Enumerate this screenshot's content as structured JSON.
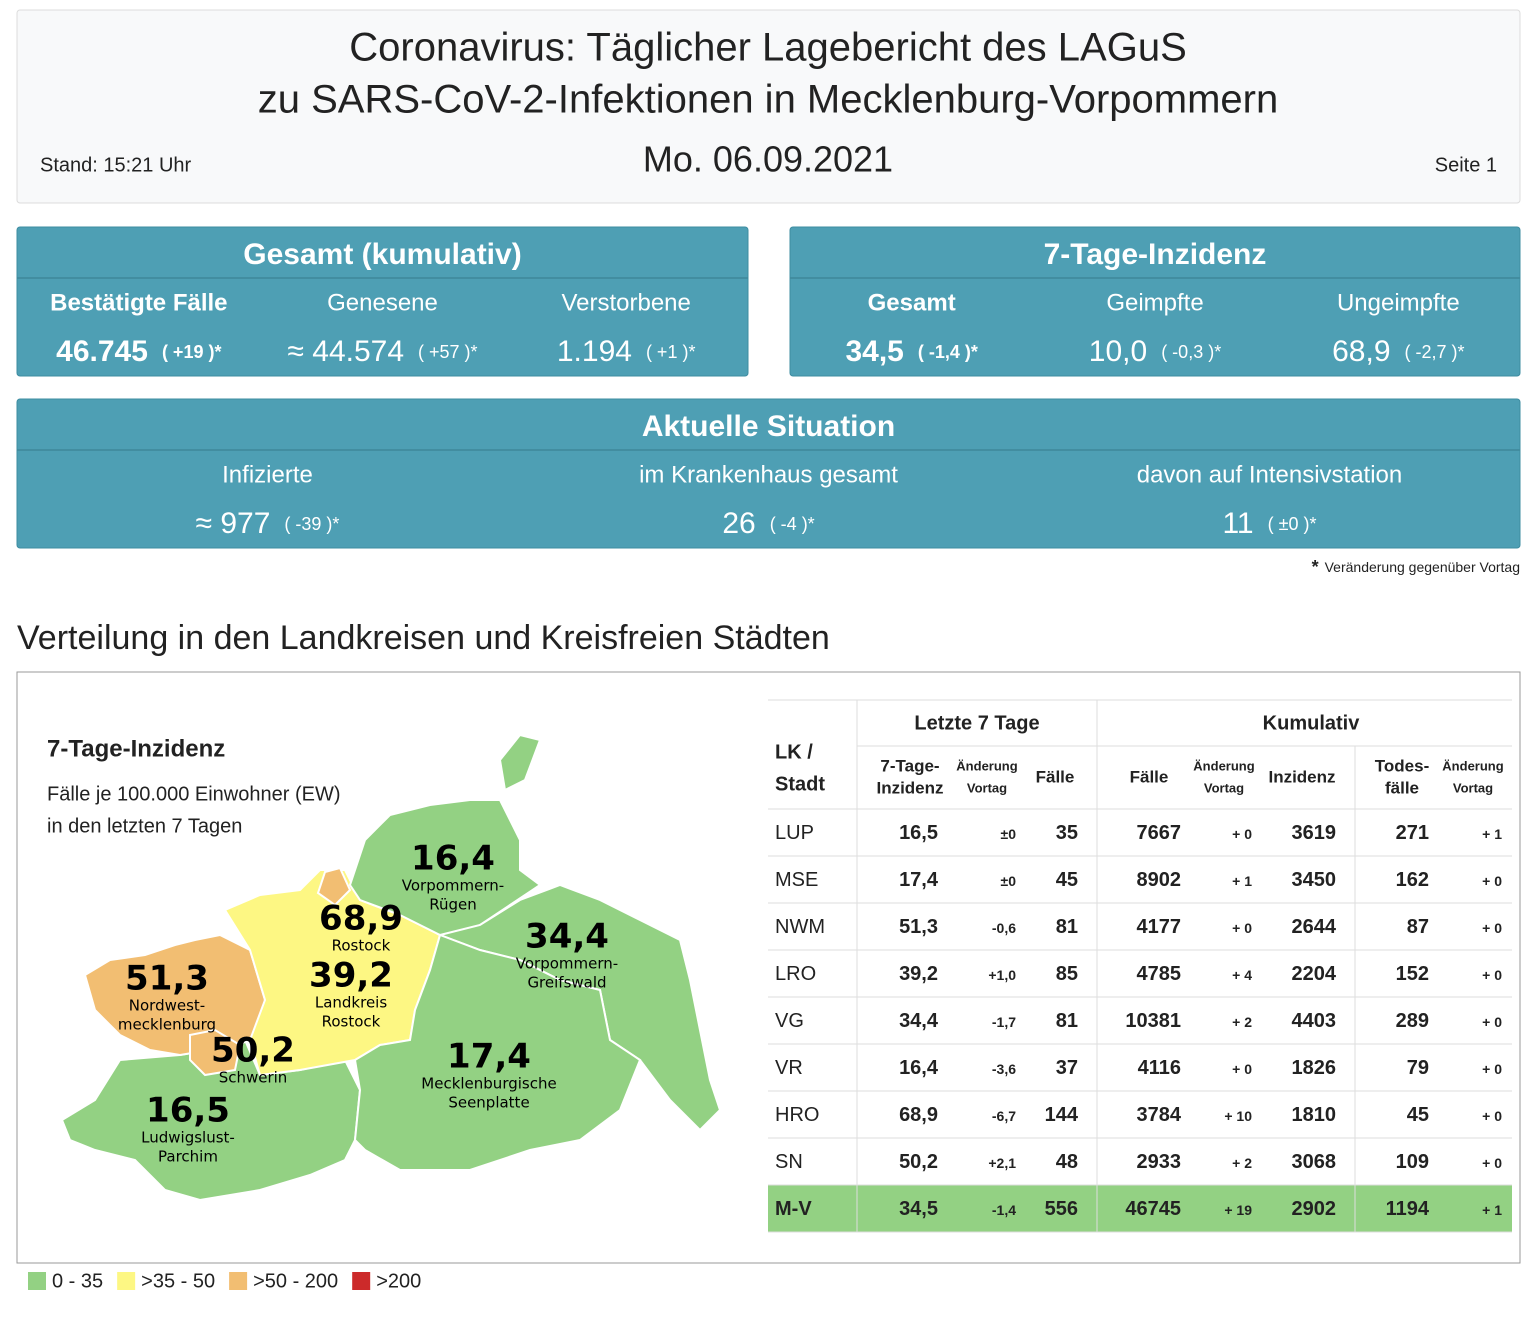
{
  "header": {
    "title_lines": [
      "Coronavirus: Täglicher Lagebericht des LAGuS",
      "zu SARS-CoV-2-Infektionen in Mecklenburg-Vorpommern"
    ],
    "stand": "Stand: 15:21 Uhr",
    "date": "Mo. 06.09.2021",
    "page": "Seite 1"
  },
  "cards": [
    {
      "title": "Gesamt (kumulativ)",
      "items": [
        {
          "label": "Bestätigte Fälle",
          "value": "46.745",
          "change": "( +19 )*"
        },
        {
          "label": "Genesene",
          "value": "≈ 44.574",
          "change": "( +57 )*"
        },
        {
          "label": "Verstorbene",
          "value": "1.194",
          "change": "( +1 )*"
        }
      ]
    },
    {
      "title": "7-Tage-Inzidenz",
      "items": [
        {
          "label": "Gesamt",
          "value": "34,5",
          "change": "( -1,4 )*"
        },
        {
          "label": "Geimpfte",
          "value": "10,0",
          "change": "( -0,3 )*"
        },
        {
          "label": "Ungeimpfte",
          "value": "68,9",
          "change": "( -2,7 )*"
        }
      ]
    },
    {
      "title": "Aktuelle Situation",
      "items": [
        {
          "label": "Infizierte",
          "value": "≈ 977",
          "change": "( -39 )*"
        },
        {
          "label": "im Krankenhaus gesamt",
          "value": "26",
          "change": "( -4 )*"
        },
        {
          "label": "davon auf Intensivstation",
          "value": "11",
          "change": "( ±0 )*"
        }
      ]
    }
  ],
  "footnote": {
    "mark": "*",
    "text": "Veränderung gegenüber Vortag"
  },
  "section_title": "Verteilung in den Landkreisen und Kreisfreien Städten",
  "map": {
    "title": "7-Tage-Inzidenz",
    "subtitle_lines": [
      "Fälle je 100.000 Einwohner (EW)",
      "in den letzten 7 Tagen"
    ],
    "regions": [
      {
        "value": "16,4",
        "name_lines": [
          "Vorpommern-",
          "Rügen"
        ]
      },
      {
        "value": "34,4",
        "name_lines": [
          "Vorpommern-",
          "Greifswald"
        ]
      },
      {
        "value": "68,9",
        "name_lines": [
          "Rostock"
        ]
      },
      {
        "value": "39,2",
        "name_lines": [
          "Landkreis",
          "Rostock"
        ]
      },
      {
        "value": "51,3",
        "name_lines": [
          "Nordwest-",
          "mecklenburg"
        ]
      },
      {
        "value": "50,2",
        "name_lines": [
          "Schwerin"
        ]
      },
      {
        "value": "17,4",
        "name_lines": [
          "Mecklenburgische",
          "Seenplatte"
        ]
      },
      {
        "value": "16,5",
        "name_lines": [
          "Ludwigslust-",
          "Parchim"
        ]
      }
    ]
  },
  "legend": [
    {
      "label": "0 - 35",
      "color": "#93d183"
    },
    {
      "label": ">35 - 50",
      "color": "#fdf783"
    },
    {
      "label": ">50 - 200",
      "color": "#f2be72"
    },
    {
      "label": ">200",
      "color": "#cc2a2a"
    }
  ],
  "table": {
    "group_headers": [
      "Letzte 7 Tage",
      "Kumulativ"
    ],
    "corner_lines": [
      "LK /",
      "Stadt"
    ],
    "columns": [
      [
        "7-Tage-",
        "Inzidenz"
      ],
      [
        "Änderung",
        "Vortag"
      ],
      [
        "Fälle"
      ],
      [
        "Fälle"
      ],
      [
        "Änderung",
        "Vortag"
      ],
      [
        "Inzidenz"
      ],
      [
        "Todes-",
        "fälle"
      ],
      [
        "Änderung",
        "Vortag"
      ]
    ],
    "rows": [
      [
        "LUP",
        "16,5",
        "±0",
        "35",
        "7667",
        "+ 0",
        "3619",
        "271",
        "+ 1"
      ],
      [
        "MSE",
        "17,4",
        "±0",
        "45",
        "8902",
        "+ 1",
        "3450",
        "162",
        "+ 0"
      ],
      [
        "NWM",
        "51,3",
        "-0,6",
        "81",
        "4177",
        "+ 0",
        "2644",
        "87",
        "+ 0"
      ],
      [
        "LRO",
        "39,2",
        "+1,0",
        "85",
        "4785",
        "+ 4",
        "2204",
        "152",
        "+ 0"
      ],
      [
        "VG",
        "34,4",
        "-1,7",
        "81",
        "10381",
        "+ 2",
        "4403",
        "289",
        "+ 0"
      ],
      [
        "VR",
        "16,4",
        "-3,6",
        "37",
        "4116",
        "+ 0",
        "1826",
        "79",
        "+ 0"
      ],
      [
        "HRO",
        "68,9",
        "-6,7",
        "144",
        "3784",
        "+ 10",
        "1810",
        "45",
        "+ 0"
      ],
      [
        "SN",
        "50,2",
        "+2,1",
        "48",
        "2933",
        "+ 2",
        "3068",
        "109",
        "+ 0"
      ],
      [
        "M-V",
        "34,5",
        "-1,4",
        "556",
        "46745",
        "+ 19",
        "2902",
        "1194",
        "+ 1"
      ]
    ]
  }
}
